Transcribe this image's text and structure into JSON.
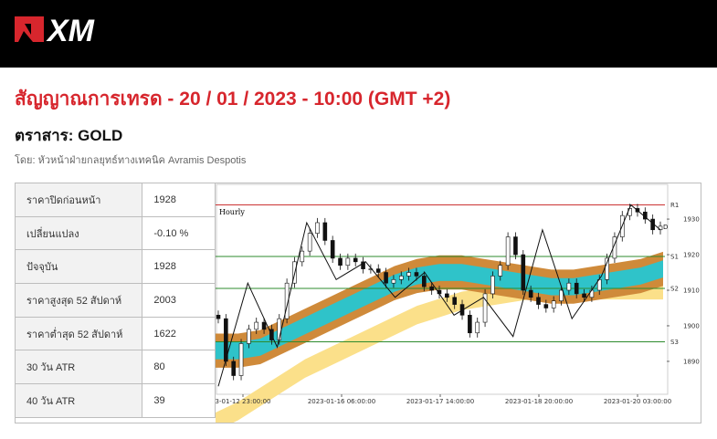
{
  "brand": {
    "logo_text": "XM",
    "logo_icon": "xm-flag-icon",
    "header_color": "#000000",
    "accent": "#d7262d"
  },
  "title": "สัญญาณการเทรด - 20 / 01 / 2023 - 10:00 (GMT +2)",
  "instrument": "ตราสาร: GOLD",
  "author": "โดย: หัวหน้าฝ่ายกลยุทธ์ทางเทคนิค Avramis Despotis",
  "stats": [
    {
      "label": "ราคาปิดก่อนหน้า",
      "value": "1928"
    },
    {
      "label": "เปลี่ยนแปลง",
      "value": "-0.10 %"
    },
    {
      "label": "ปัจจุบัน",
      "value": "1928"
    },
    {
      "label": "ราคาสูงสุด 52 สัปดาห์",
      "value": "2003"
    },
    {
      "label": "ราคาต่ำสุด 52 สัปดาห์",
      "value": "1622"
    },
    {
      "label": "30 วัน ATR",
      "value": "80"
    },
    {
      "label": "40 วัน ATR",
      "value": "39"
    }
  ],
  "chart_data": {
    "type": "line",
    "timeframe": "Hourly",
    "x_ticks": [
      "3-01-12 23:00:00",
      "2023-01-16 06:00:00",
      "2023-01-17 14:00:00",
      "2023-01-18 20:00:00",
      "2023-01-20 03:00:00"
    ],
    "y_ticks": [
      1890,
      1900,
      1910,
      1920,
      1930
    ],
    "ylim": [
      1881,
      1939
    ],
    "levels": [
      {
        "name": "R1",
        "value": 1934,
        "color": "#cc3333"
      },
      {
        "name": "S1",
        "value": 1919.5,
        "color": "#2e8b2e"
      },
      {
        "name": "S2",
        "value": 1910.5,
        "color": "#2e8b2e"
      },
      {
        "name": "S3",
        "value": 1895.5,
        "color": "#2e8b2e"
      }
    ],
    "current_marker": "D",
    "price_series": [
      1902,
      1890,
      1886,
      1895,
      1899,
      1901,
      1899,
      1896,
      1902,
      1912,
      1918,
      1921,
      1926,
      1929,
      1924,
      1919,
      1917,
      1919,
      1918,
      1916,
      1916,
      1915,
      1912,
      1913,
      1914,
      1915,
      1914,
      1911,
      1910,
      1909,
      1908,
      1906,
      1903,
      1898,
      1901,
      1909,
      1914,
      1917,
      1925,
      1920,
      1910,
      1908,
      1906,
      1905,
      1907,
      1910,
      1912,
      1909,
      1908,
      1910,
      1913,
      1919,
      1925,
      1931,
      1933,
      1932,
      1930,
      1927,
      1928
    ],
    "swing_line": [
      1883,
      1912,
      1894,
      1929,
      1913,
      1918,
      1908,
      1915,
      1903,
      1908,
      1897,
      1927,
      1902,
      1914,
      1934,
      1927
    ],
    "bands": [
      {
        "name": "outer",
        "color": "#cf8a3a",
        "center": [
          1893,
          1893,
          1894,
          1897,
          1900,
          1903,
          1906,
          1909,
          1912,
          1914,
          1915,
          1915,
          1914,
          1913,
          1912,
          1911,
          1911,
          1912,
          1913,
          1914,
          1916
        ],
        "half_width": 4.8
      },
      {
        "name": "inner",
        "color": "#2fc3c9",
        "center": [
          1893,
          1893,
          1894,
          1897,
          1900,
          1903,
          1906,
          1909,
          1912,
          1914,
          1915,
          1915,
          1914,
          1913,
          1912,
          1911,
          1911,
          1912,
          1913,
          1914,
          1916
        ],
        "half_width": 2.4
      },
      {
        "name": "slow",
        "color": "#fbe08a",
        "center": [
          1873,
          1876,
          1880,
          1884,
          1888,
          1891,
          1894,
          1897,
          1900,
          1903,
          1905,
          1907,
          1908,
          1909,
          1910,
          1910,
          1910,
          1910,
          1910,
          1910,
          1910
        ],
        "half_width": 2.6
      }
    ]
  }
}
